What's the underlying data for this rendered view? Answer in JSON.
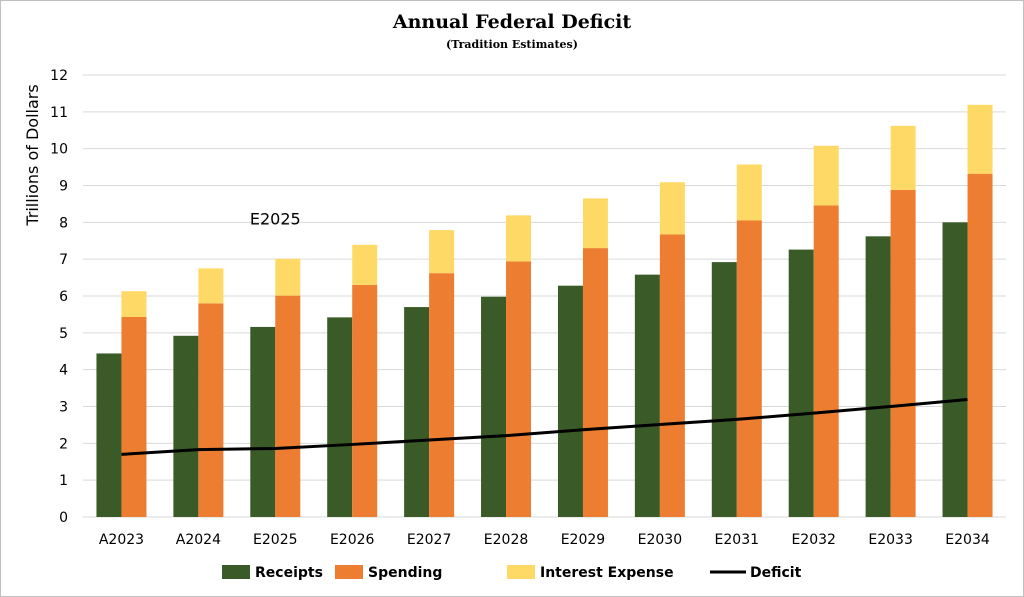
{
  "chart_data": {
    "type": "bar",
    "title": "Annual Federal Deficit",
    "subtitle": "(Tradition Estimates)",
    "ylabel": "Trillions of Dollars",
    "ylim": [
      0,
      12
    ],
    "yticks": [
      0,
      1,
      2,
      3,
      4,
      5,
      6,
      7,
      8,
      9,
      10,
      11,
      12
    ],
    "grid": true,
    "legend_position": "bottom",
    "categories": [
      "A2023",
      "A2024",
      "E2025",
      "E2026",
      "E2027",
      "E2028",
      "E2029",
      "E2030",
      "E2031",
      "E2032",
      "E2033",
      "E2034"
    ],
    "series": [
      {
        "name": "Receipts",
        "kind": "bar",
        "color": "#3a5a27",
        "values": [
          4.44,
          4.92,
          5.16,
          5.42,
          5.7,
          5.98,
          6.28,
          6.58,
          6.92,
          7.26,
          7.62,
          8.0
        ]
      },
      {
        "name": "Spending",
        "kind": "bar",
        "color": "#ed7d31",
        "values": [
          5.43,
          5.8,
          6.01,
          6.3,
          6.62,
          6.94,
          7.3,
          7.67,
          8.05,
          8.46,
          8.88,
          9.32
        ]
      },
      {
        "name": "Interest Expense",
        "kind": "stacked-on-spending",
        "color": "#ffd966",
        "values": [
          0.7,
          0.95,
          1.0,
          1.09,
          1.17,
          1.25,
          1.35,
          1.42,
          1.52,
          1.62,
          1.74,
          1.87
        ]
      },
      {
        "name": "Deficit",
        "kind": "line",
        "color": "#000000",
        "values": [
          1.7,
          1.83,
          1.86,
          1.97,
          2.09,
          2.21,
          2.37,
          2.51,
          2.65,
          2.82,
          3.0,
          3.19
        ]
      }
    ],
    "annotations": [
      {
        "text": "E2025",
        "category": "E2025",
        "y": 8.1
      }
    ]
  }
}
